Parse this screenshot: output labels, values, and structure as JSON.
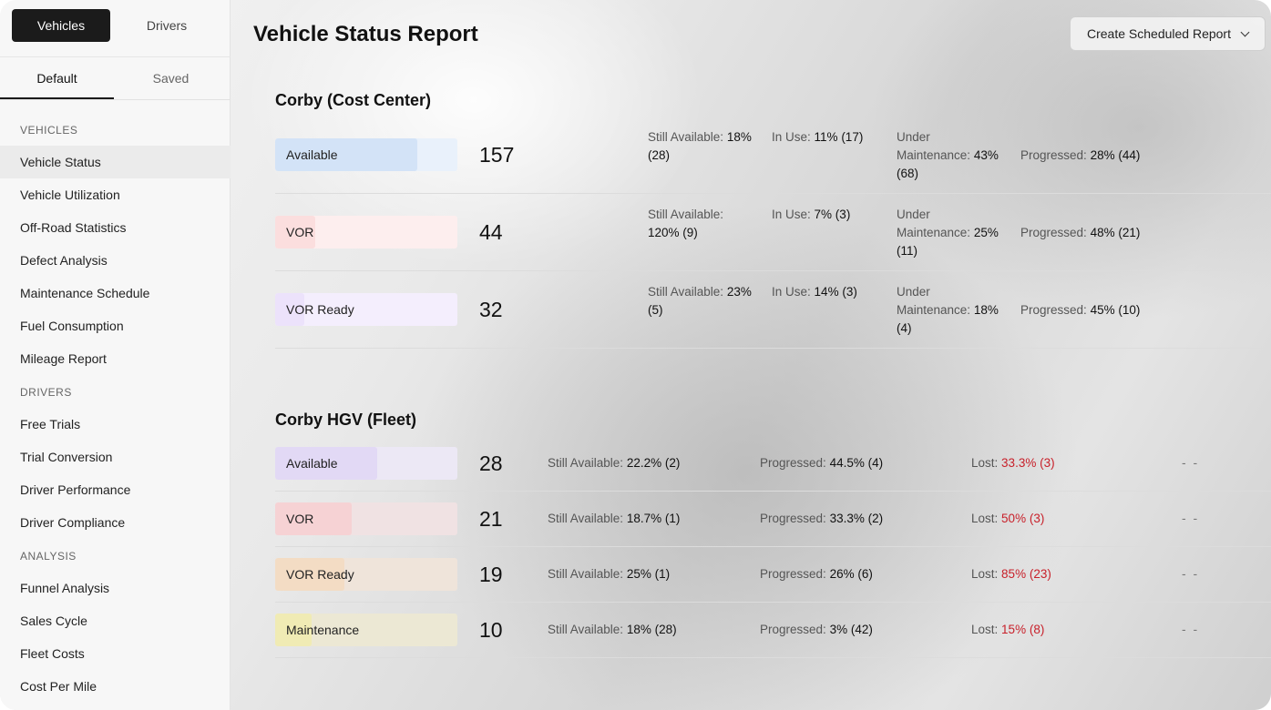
{
  "sidebar": {
    "top_tabs": [
      "Vehicles",
      "Drivers"
    ],
    "sub_tabs": [
      "Default",
      "Saved"
    ],
    "groups": [
      {
        "label": "VEHICLES",
        "items": [
          "Vehicle Status",
          "Vehicle Utilization",
          "Off-Road Statistics",
          "Defect Analysis",
          "Maintenance Schedule",
          "Fuel Consumption",
          "Mileage Report"
        ]
      },
      {
        "label": "DRIVERS",
        "items": [
          "Free Trials",
          "Trial Conversion",
          "Driver Performance",
          "Driver Compliance"
        ]
      },
      {
        "label": "ANALYSIS",
        "items": [
          "Funnel Analysis",
          "Sales Cycle",
          "Fleet Costs",
          "Cost Per Mile"
        ]
      }
    ],
    "selected": "Vehicle Status"
  },
  "header": {
    "title": "Vehicle Status Report",
    "schedule_button": "Create Scheduled Report"
  },
  "sections": [
    {
      "title": "Corby (Cost Center)",
      "rows": [
        {
          "label": "Available",
          "count": "157",
          "fill_fraction": 0.78,
          "color": "#d3e3f7",
          "track": "#e9f1fb",
          "still_label": "Still Available:",
          "still": "18%",
          "still_extra": "(28)",
          "inuse_label": "In Use:",
          "inuse": "11% (17)",
          "maint_label1": "Under",
          "maint_label2": "Maintenance:",
          "maint": "43%",
          "maint_extra": "(68)",
          "prog_label": "Progressed:",
          "prog": "28% (44)"
        },
        {
          "label": "VOR",
          "count": "44",
          "fill_fraction": 0.22,
          "color": "#fbdede",
          "track": "#fdeeee",
          "still_label": "Still Available:",
          "still": "",
          "still_extra": "120% (9)",
          "inuse_label": "In Use:",
          "inuse": "7% (3)",
          "maint_label1": "Under",
          "maint_label2": "Maintenance:",
          "maint": "25%",
          "maint_extra": "(11)",
          "prog_label": "Progressed:",
          "prog": "48% (21)"
        },
        {
          "label": "VOR Ready",
          "count": "32",
          "fill_fraction": 0.16,
          "color": "#ece2fb",
          "track": "#f4eefd",
          "still_label": "Still Available:",
          "still": "23%",
          "still_extra": "(5)",
          "inuse_label": "In Use:",
          "inuse": "14% (3)",
          "maint_label1": "Under",
          "maint_label2": "Maintenance:",
          "maint": "18%",
          "maint_extra": "(4)",
          "prog_label": "Progressed:",
          "prog": "45% (10)"
        }
      ]
    },
    {
      "title": "Corby HGV (Fleet)",
      "rows": [
        {
          "label": "Available",
          "count": "28",
          "fill_fraction": 0.56,
          "color": "#e2d9f5",
          "track": "#ece8f5",
          "still_label": "Still Available:",
          "still": "22.2% (2)",
          "prog_label": "Progressed:",
          "prog": "44.5% (4)",
          "lost_label": "Lost:",
          "lost": "33.3% (3)",
          "dash": "- -"
        },
        {
          "label": "VOR",
          "count": "21",
          "fill_fraction": 0.42,
          "color": "#f6d2d4",
          "track": "#f0e2e3",
          "still_label": "Still Available:",
          "still": "18.7% (1)",
          "prog_label": "Progressed:",
          "prog": "33.3% (2)",
          "lost_label": "Lost:",
          "lost": "50% (3)",
          "dash": "- -"
        },
        {
          "label": "VOR Ready",
          "count": "19",
          "fill_fraction": 0.38,
          "color": "#f3dcc4",
          "track": "#efe4da",
          "still_label": "Still Available:",
          "still": "25% (1)",
          "prog_label": "Progressed:",
          "prog": "26% (6)",
          "lost_label": "Lost:",
          "lost": "85% (23)",
          "dash": "- -"
        },
        {
          "label": "Maintenance",
          "count": "10",
          "fill_fraction": 0.2,
          "color": "#f0ebb4",
          "track": "#ece8d4",
          "still_label": "Still Available:",
          "still": "18% (28)",
          "prog_label": "Progressed:",
          "prog": "3% (42)",
          "lost_label": "Lost:",
          "lost": "15% (8)",
          "dash": "- -"
        }
      ]
    }
  ]
}
